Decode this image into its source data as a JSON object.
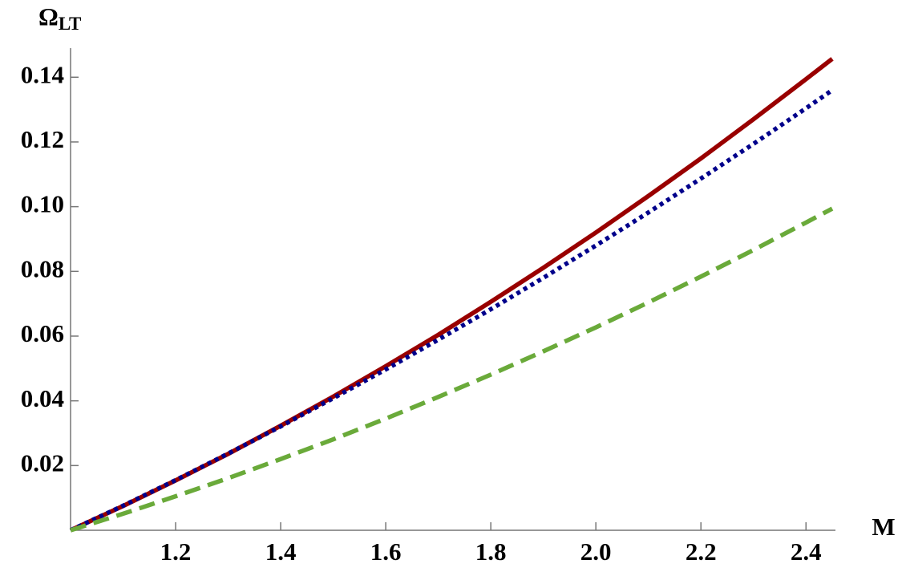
{
  "chart_data": {
    "type": "line",
    "xlabel": "M",
    "ylabel": {
      "main": "Ω",
      "sub": "LT"
    },
    "x": [
      1.0,
      1.1,
      1.2,
      1.3,
      1.4,
      1.5,
      1.6,
      1.7,
      1.8,
      1.9,
      2.0,
      2.1,
      2.2,
      2.3,
      2.4,
      2.45
    ],
    "series": [
      {
        "color": "#990000",
        "style": "solid",
        "values": [
          0,
          0.0075,
          0.0154,
          0.0236,
          0.0323,
          0.0413,
          0.0507,
          0.0604,
          0.0706,
          0.0811,
          0.092,
          0.1033,
          0.1149,
          0.127,
          0.1394,
          0.1457
        ]
      },
      {
        "color": "#00008b",
        "style": "dotted",
        "values": [
          0,
          0.0076,
          0.0155,
          0.0237,
          0.0321,
          0.0408,
          0.0497,
          0.0589,
          0.0683,
          0.078,
          0.088,
          0.0982,
          0.1087,
          0.1194,
          0.1304,
          0.136
        ]
      },
      {
        "color": "#6aaa3a",
        "style": "dashed",
        "values": [
          0,
          0.0051,
          0.0105,
          0.0161,
          0.022,
          0.0281,
          0.0345,
          0.0412,
          0.0481,
          0.0553,
          0.0627,
          0.0704,
          0.0784,
          0.0866,
          0.0951,
          0.0994
        ]
      }
    ],
    "xlim": [
      1,
      2.45
    ],
    "ylim": [
      0,
      0.148
    ],
    "xticks": [
      1.2,
      1.4,
      1.6,
      1.8,
      {
        "value": 2,
        "label": "2.0"
      },
      2.2,
      2.4
    ],
    "yticks": [
      0.02,
      0.04,
      0.06,
      0.08,
      {
        "value": 0.1,
        "label": "0.10"
      },
      0.12,
      0.14
    ]
  }
}
